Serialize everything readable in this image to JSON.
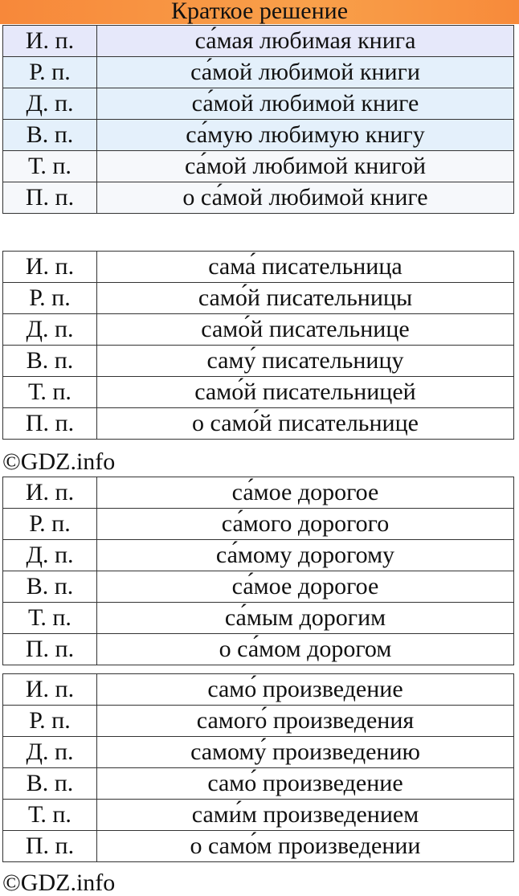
{
  "header": {
    "title": "Краткое решение"
  },
  "copyright": "©GDZ.info",
  "tables": [
    {
      "rows": [
        [
          "И. п.",
          "са́мая любимая книга"
        ],
        [
          "Р. п.",
          "са́мой любимой книги"
        ],
        [
          "Д. п.",
          "са́мой любимой книге"
        ],
        [
          "В. п.",
          "са́мую любимую книгу"
        ],
        [
          "Т. п.",
          "са́мой любимой книгой"
        ],
        [
          "П. п.",
          "о са́мой любимой книге"
        ]
      ]
    },
    {
      "rows": [
        [
          "И. п.",
          "сама́ писательница"
        ],
        [
          "Р. п.",
          "само́й писательницы"
        ],
        [
          "Д. п.",
          "само́й писательнице"
        ],
        [
          "В. п.",
          "саму́ писательницу"
        ],
        [
          "Т. п.",
          "само́й писательницей"
        ],
        [
          "П. п.",
          "о само́й писательнице"
        ]
      ]
    },
    {
      "rows": [
        [
          "И. п.",
          "са́мое дорогое"
        ],
        [
          "Р. п.",
          "са́мого дорогого"
        ],
        [
          "Д. п.",
          "са́мому дорогому"
        ],
        [
          "В. п.",
          "са́мое дорогое"
        ],
        [
          "Т. п.",
          "са́мым дорогим"
        ],
        [
          "П. п.",
          "о са́мом дорогом"
        ]
      ]
    },
    {
      "rows": [
        [
          "И. п.",
          "само́ произведение"
        ],
        [
          "Р. п.",
          "самого́ произведения"
        ],
        [
          "Д. п.",
          "самому́ произведению"
        ],
        [
          "В. п.",
          "само́ произведение"
        ],
        [
          "Т. п.",
          "сами́м произведением"
        ],
        [
          "П. п.",
          "о само́м произведении"
        ]
      ]
    }
  ]
}
